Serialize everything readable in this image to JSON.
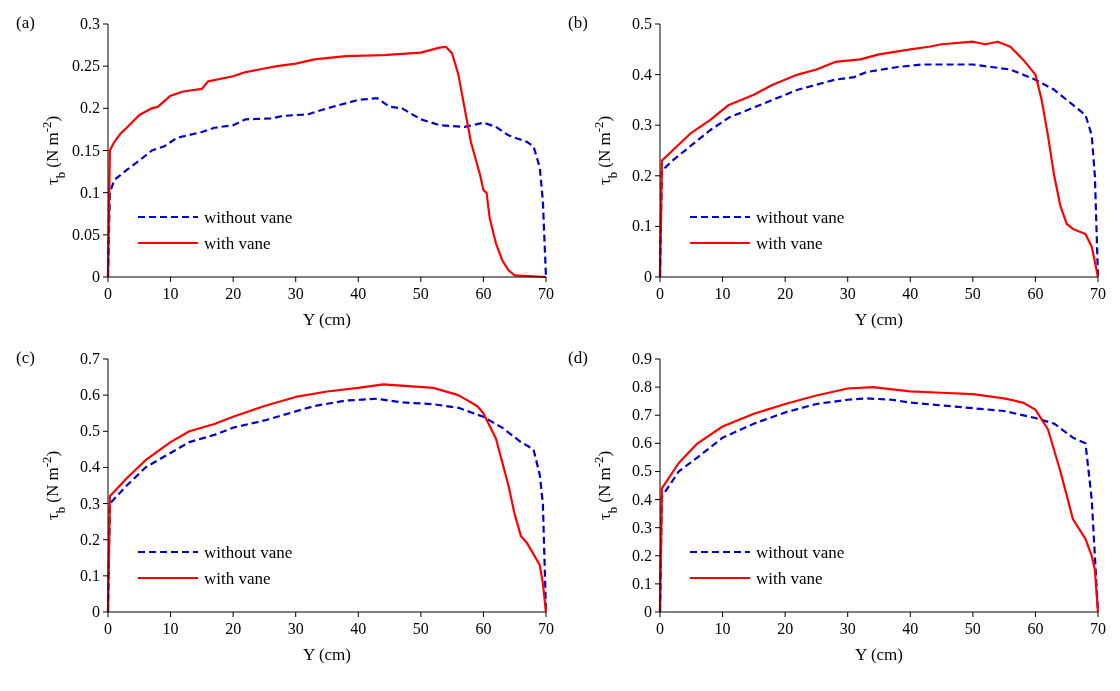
{
  "chart_data": [
    {
      "type": "line",
      "title": "(a)",
      "xlabel": "Y (cm)",
      "ylabel": "τ$_{b}$ (N m$^{-2}$)",
      "xlim": [
        0,
        70
      ],
      "xticks": [
        0,
        10,
        20,
        30,
        40,
        50,
        60,
        70
      ],
      "ylim": [
        0,
        0.3
      ],
      "yticks": [
        0,
        0.05,
        0.1,
        0.15,
        0.2,
        0.25,
        0.3
      ],
      "legend": "bottom left",
      "series": [
        {
          "name": "without vane",
          "color": "#0000cc",
          "line_style": "dashed",
          "x": [
            0,
            0.3,
            1,
            3,
            5,
            7,
            9,
            11,
            15,
            17,
            20,
            22,
            26,
            28,
            32,
            35,
            40,
            43,
            45,
            47,
            50,
            53,
            57,
            60,
            62,
            64,
            67,
            68,
            69,
            69.5,
            70
          ],
          "values": [
            0,
            0.1,
            0.115,
            0.127,
            0.138,
            0.15,
            0.155,
            0.165,
            0.172,
            0.177,
            0.18,
            0.187,
            0.188,
            0.191,
            0.193,
            0.2,
            0.21,
            0.212,
            0.202,
            0.2,
            0.187,
            0.18,
            0.178,
            0.183,
            0.178,
            0.168,
            0.16,
            0.155,
            0.13,
            0.09,
            0
          ]
        },
        {
          "name": "with vane",
          "color": "#ff0000",
          "line_style": "solid",
          "x": [
            0,
            0.3,
            1,
            2,
            3,
            5,
            7,
            8,
            10,
            12,
            15,
            16,
            20,
            22,
            27,
            30,
            33,
            38,
            44,
            50,
            53,
            54,
            55,
            56,
            57,
            58,
            59.5,
            60,
            60.5,
            61,
            62,
            63,
            64,
            65,
            70
          ],
          "values": [
            0,
            0.15,
            0.16,
            0.17,
            0.177,
            0.192,
            0.2,
            0.202,
            0.215,
            0.22,
            0.223,
            0.232,
            0.238,
            0.243,
            0.25,
            0.253,
            0.258,
            0.262,
            0.263,
            0.266,
            0.272,
            0.273,
            0.265,
            0.24,
            0.2,
            0.16,
            0.12,
            0.103,
            0.1,
            0.07,
            0.04,
            0.02,
            0.008,
            0.002,
            0
          ]
        }
      ]
    },
    {
      "type": "line",
      "title": "(b)",
      "xlabel": "Y (cm)",
      "ylabel": "τ$_{b}$ (N m$^{-2}$)",
      "xlim": [
        0,
        70
      ],
      "xticks": [
        0,
        10,
        20,
        30,
        40,
        50,
        60,
        70
      ],
      "ylim": [
        0,
        0.5
      ],
      "yticks": [
        0,
        0.1,
        0.2,
        0.3,
        0.4,
        0.5
      ],
      "legend": "bottom left",
      "series": [
        {
          "name": "without vane",
          "color": "#0000cc",
          "line_style": "dashed",
          "x": [
            0,
            0.3,
            2,
            5,
            8,
            11,
            15,
            18,
            22,
            25,
            28,
            31,
            33,
            38,
            42,
            45,
            50,
            53,
            56,
            60,
            63,
            66,
            68,
            69,
            69.5,
            70
          ],
          "values": [
            0,
            0.21,
            0.23,
            0.26,
            0.29,
            0.315,
            0.335,
            0.35,
            0.37,
            0.38,
            0.39,
            0.395,
            0.405,
            0.415,
            0.42,
            0.42,
            0.42,
            0.415,
            0.41,
            0.39,
            0.37,
            0.34,
            0.32,
            0.28,
            0.2,
            0
          ]
        },
        {
          "name": "with vane",
          "color": "#ff0000",
          "line_style": "solid",
          "x": [
            0,
            0.3,
            2,
            5,
            8,
            11,
            15,
            18,
            22,
            25,
            28,
            32,
            35,
            40,
            43,
            45,
            50,
            52,
            54,
            56,
            58,
            60,
            61,
            62,
            63,
            64,
            65,
            66,
            67,
            68,
            69,
            70
          ],
          "values": [
            0,
            0.23,
            0.25,
            0.285,
            0.31,
            0.34,
            0.36,
            0.38,
            0.4,
            0.41,
            0.425,
            0.43,
            0.44,
            0.45,
            0.455,
            0.46,
            0.465,
            0.46,
            0.465,
            0.455,
            0.43,
            0.4,
            0.35,
            0.28,
            0.2,
            0.14,
            0.105,
            0.095,
            0.09,
            0.085,
            0.06,
            0
          ]
        }
      ]
    },
    {
      "type": "line",
      "title": "(c)",
      "xlabel": "Y (cm)",
      "ylabel": "τ$_{b}$ (N m$^{-2}$)",
      "xlim": [
        0,
        70
      ],
      "xticks": [
        0,
        10,
        20,
        30,
        40,
        50,
        60,
        70
      ],
      "ylim": [
        0,
        0.7
      ],
      "yticks": [
        0,
        0.1,
        0.2,
        0.3,
        0.4,
        0.5,
        0.6,
        0.7
      ],
      "legend": "bottom left",
      "series": [
        {
          "name": "without vane",
          "color": "#0000cc",
          "line_style": "dashed",
          "x": [
            0,
            0.3,
            3,
            6,
            10,
            13,
            17,
            20,
            25,
            30,
            33,
            38,
            43,
            47,
            52,
            56,
            60,
            63,
            66,
            68,
            69,
            69.5,
            70
          ],
          "values": [
            0,
            0.3,
            0.35,
            0.4,
            0.44,
            0.47,
            0.49,
            0.51,
            0.53,
            0.555,
            0.57,
            0.585,
            0.59,
            0.58,
            0.575,
            0.565,
            0.54,
            0.51,
            0.47,
            0.45,
            0.38,
            0.3,
            0
          ]
        },
        {
          "name": "with vane",
          "color": "#ff0000",
          "line_style": "solid",
          "x": [
            0,
            0.3,
            3,
            6,
            10,
            13,
            17,
            20,
            25,
            30,
            35,
            40,
            44,
            48,
            52,
            56,
            59,
            60,
            62,
            64,
            65,
            66,
            67,
            68,
            69,
            69.5,
            70
          ],
          "values": [
            0,
            0.32,
            0.37,
            0.42,
            0.47,
            0.5,
            0.52,
            0.54,
            0.57,
            0.595,
            0.61,
            0.62,
            0.63,
            0.625,
            0.62,
            0.6,
            0.57,
            0.55,
            0.48,
            0.35,
            0.27,
            0.21,
            0.19,
            0.16,
            0.13,
            0.08,
            0
          ]
        }
      ]
    },
    {
      "type": "line",
      "title": "(d)",
      "xlabel": "Y (cm)",
      "ylabel": "τ$_{b}$ (N m$^{-2}$)",
      "xlim": [
        0,
        70
      ],
      "xticks": [
        0,
        10,
        20,
        30,
        40,
        50,
        60,
        70
      ],
      "ylim": [
        0,
        0.9
      ],
      "yticks": [
        0,
        0.1,
        0.2,
        0.3,
        0.4,
        0.5,
        0.6,
        0.7,
        0.8,
        0.9
      ],
      "legend": "bottom left",
      "series": [
        {
          "name": "without vane",
          "color": "#0000cc",
          "line_style": "dashed",
          "x": [
            0,
            0.3,
            3,
            6,
            10,
            15,
            20,
            25,
            30,
            33,
            37,
            40,
            45,
            50,
            55,
            60,
            63,
            66,
            68,
            69,
            69.5,
            70
          ],
          "values": [
            0,
            0.41,
            0.5,
            0.55,
            0.62,
            0.67,
            0.71,
            0.74,
            0.755,
            0.76,
            0.755,
            0.745,
            0.735,
            0.725,
            0.715,
            0.69,
            0.67,
            0.62,
            0.6,
            0.4,
            0.2,
            0
          ]
        },
        {
          "name": "with vane",
          "color": "#ff0000",
          "line_style": "solid",
          "x": [
            0,
            0.3,
            3,
            6,
            10,
            15,
            20,
            25,
            30,
            34,
            40,
            45,
            50,
            55,
            58,
            60,
            62,
            64,
            66,
            68,
            69,
            69.5,
            70
          ],
          "values": [
            0,
            0.44,
            0.53,
            0.6,
            0.66,
            0.705,
            0.74,
            0.77,
            0.795,
            0.8,
            0.785,
            0.78,
            0.775,
            0.76,
            0.745,
            0.72,
            0.65,
            0.5,
            0.33,
            0.26,
            0.2,
            0.15,
            0
          ]
        }
      ]
    }
  ]
}
